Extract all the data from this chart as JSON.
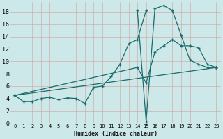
{
  "xlabel": "Humidex (Indice chaleur)",
  "bg_color": "#cce8e8",
  "line_color": "#1a6b6b",
  "grid_color": "#b0d4d4",
  "xlim": [
    -0.5,
    23.5
  ],
  "ylim": [
    0,
    19.5
  ],
  "xticks": [
    0,
    1,
    2,
    3,
    4,
    5,
    6,
    7,
    8,
    9,
    10,
    11,
    12,
    13,
    14,
    15,
    16,
    17,
    18,
    19,
    20,
    21,
    22,
    23
  ],
  "yticks": [
    0,
    2,
    4,
    6,
    8,
    10,
    12,
    14,
    16,
    18
  ],
  "series1": [
    [
      0,
      4.5
    ],
    [
      1,
      3.5
    ],
    [
      2,
      3.5
    ],
    [
      3,
      4.0
    ],
    [
      4,
      4.2
    ],
    [
      5,
      3.8
    ],
    [
      6,
      4.1
    ],
    [
      7,
      4.0
    ],
    [
      8,
      3.2
    ],
    [
      9,
      5.8
    ],
    [
      10,
      6.0
    ],
    [
      11,
      7.5
    ],
    [
      12,
      9.5
    ],
    [
      13,
      12.8
    ],
    [
      14,
      13.5
    ],
    [
      15,
      18.2
    ]
  ],
  "series2": [
    [
      14,
      18.2
    ],
    [
      15,
      0.3
    ],
    [
      16,
      18.5
    ],
    [
      17,
      19.0
    ],
    [
      18,
      18.2
    ],
    [
      19,
      14.2
    ],
    [
      20,
      10.2
    ],
    [
      21,
      9.5
    ],
    [
      22,
      9.0
    ],
    [
      23,
      9.0
    ]
  ],
  "series3": [
    [
      0,
      4.5
    ],
    [
      14,
      9.0
    ],
    [
      15,
      6.5
    ],
    [
      16,
      11.5
    ],
    [
      17,
      12.5
    ],
    [
      18,
      13.5
    ],
    [
      19,
      12.5
    ],
    [
      20,
      12.5
    ],
    [
      21,
      12.2
    ],
    [
      22,
      9.5
    ],
    [
      23,
      9.0
    ]
  ],
  "series4": [
    [
      0,
      4.5
    ],
    [
      23,
      9.0
    ]
  ]
}
